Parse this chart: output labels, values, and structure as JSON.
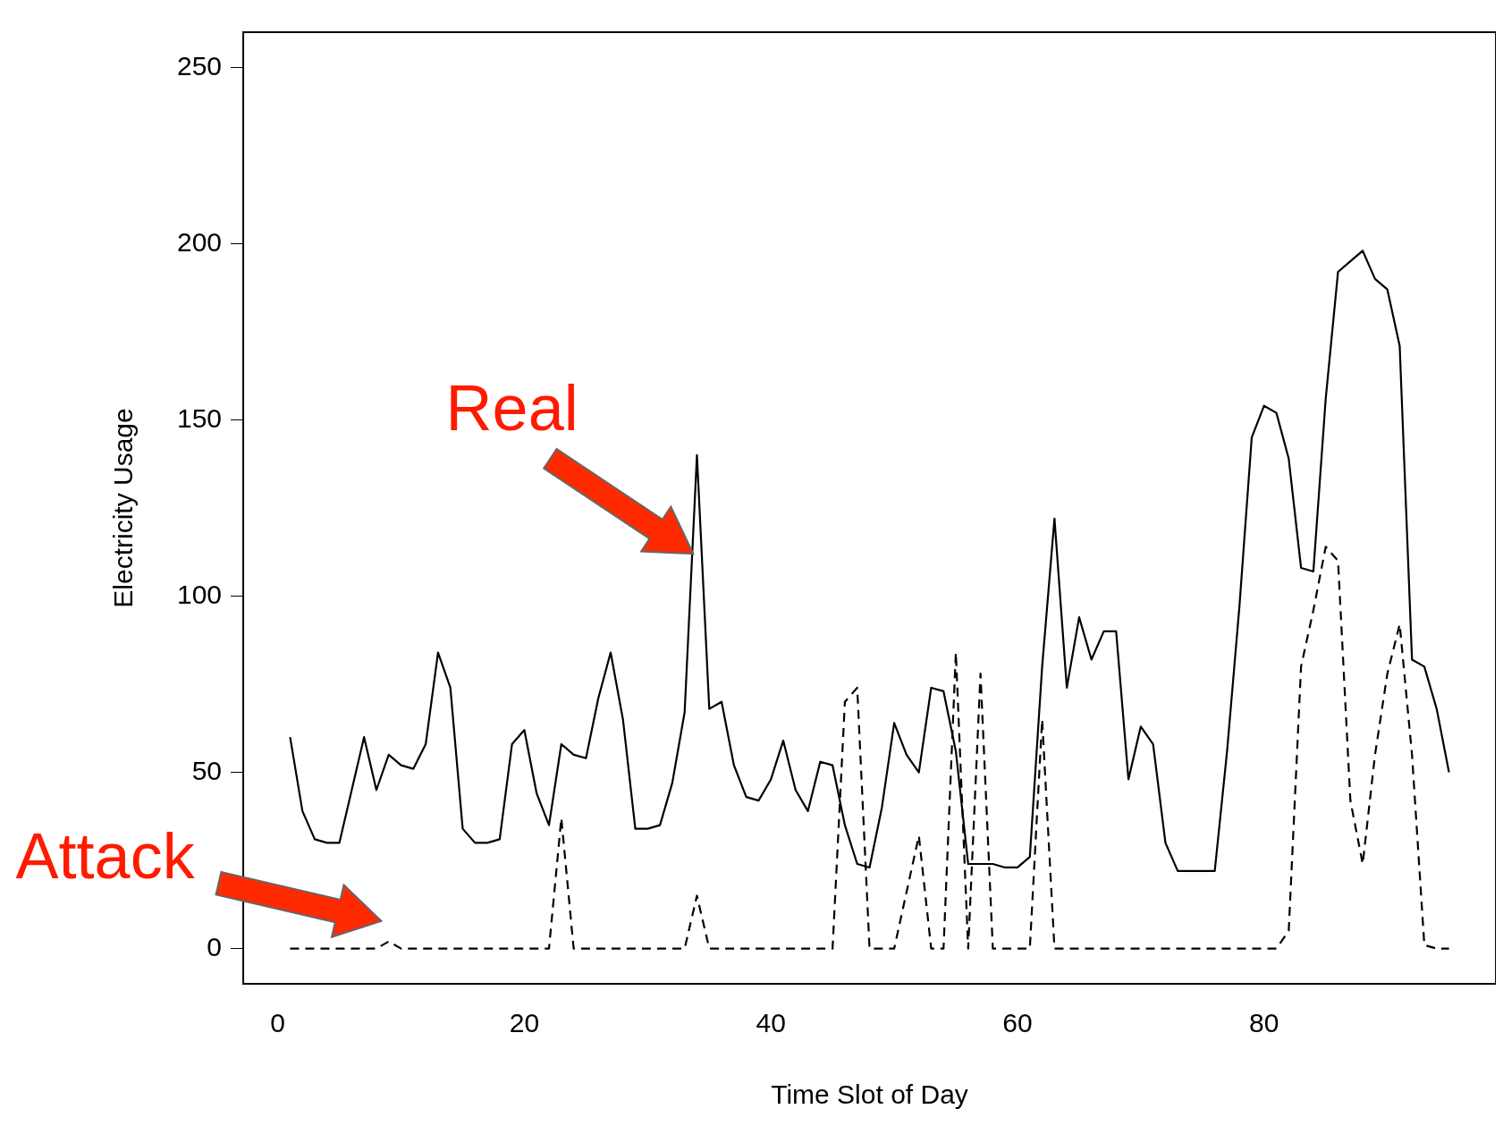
{
  "chart_data": {
    "type": "line",
    "xlabel": "Time Slot of Day",
    "ylabel": "Electricity Usage",
    "x": [
      1,
      2,
      3,
      4,
      5,
      6,
      7,
      8,
      9,
      10,
      11,
      12,
      13,
      14,
      15,
      16,
      17,
      18,
      19,
      20,
      21,
      22,
      23,
      24,
      25,
      26,
      27,
      28,
      29,
      30,
      31,
      32,
      33,
      34,
      35,
      36,
      37,
      38,
      39,
      40,
      41,
      42,
      43,
      44,
      45,
      46,
      47,
      48,
      49,
      50,
      51,
      52,
      53,
      54,
      55,
      56,
      57,
      58,
      59,
      60,
      61,
      62,
      63,
      64,
      65,
      66,
      67,
      68,
      69,
      70,
      71,
      72,
      73,
      74,
      75,
      76,
      77,
      78,
      79,
      80,
      81,
      82,
      83,
      84,
      85,
      86,
      87,
      88,
      89,
      90,
      91,
      92,
      93,
      94,
      95
    ],
    "series": [
      {
        "name": "Real",
        "color": "#000000",
        "line_style": "solid",
        "values": [
          60,
          39,
          31,
          30,
          30,
          45,
          60,
          45,
          55,
          52,
          51,
          58,
          84,
          74,
          34,
          30,
          30,
          31,
          58,
          62,
          44,
          35,
          58,
          55,
          54,
          71,
          84,
          65,
          34,
          34,
          35,
          47,
          67,
          140,
          68,
          70,
          52,
          43,
          42,
          48,
          59,
          45,
          39,
          53,
          52,
          35,
          24,
          23,
          40,
          64,
          55,
          50,
          74,
          73,
          56,
          24,
          24,
          24,
          23,
          23,
          26,
          80,
          122,
          74,
          94,
          82,
          90,
          90,
          48,
          63,
          58,
          30,
          22,
          22,
          22,
          22,
          56,
          97,
          145,
          154,
          152,
          139,
          108,
          107,
          156,
          192,
          195,
          198,
          190,
          187,
          171,
          82,
          80,
          68,
          50
        ]
      },
      {
        "name": "Attack",
        "color": "#000000",
        "line_style": "dashed",
        "values": [
          0,
          0,
          0,
          0,
          0,
          0,
          0,
          0,
          2,
          0,
          0,
          0,
          0,
          0,
          0,
          0,
          0,
          0,
          0,
          0,
          0,
          0,
          37,
          0,
          0,
          0,
          0,
          0,
          0,
          0,
          0,
          0,
          0,
          15,
          0,
          0,
          0,
          0,
          0,
          0,
          0,
          0,
          0,
          0,
          0,
          70,
          74,
          0,
          0,
          0,
          16,
          32,
          0,
          0,
          84,
          0,
          78,
          0,
          0,
          0,
          0,
          65,
          0,
          0,
          0,
          0,
          0,
          0,
          0,
          0,
          0,
          0,
          0,
          0,
          0,
          0,
          0,
          0,
          0,
          0,
          0,
          5,
          80,
          96,
          114,
          110,
          42,
          24,
          55,
          78,
          92,
          55,
          1,
          0,
          0
        ]
      }
    ],
    "xlim": [
      -2.8,
      98.8
    ],
    "ylim": [
      -10,
      260
    ],
    "xticks": [
      0,
      20,
      40,
      60,
      80
    ],
    "yticks": [
      0,
      50,
      100,
      150,
      200,
      250
    ],
    "grid": false,
    "legend": false,
    "marker": "none"
  }
}
